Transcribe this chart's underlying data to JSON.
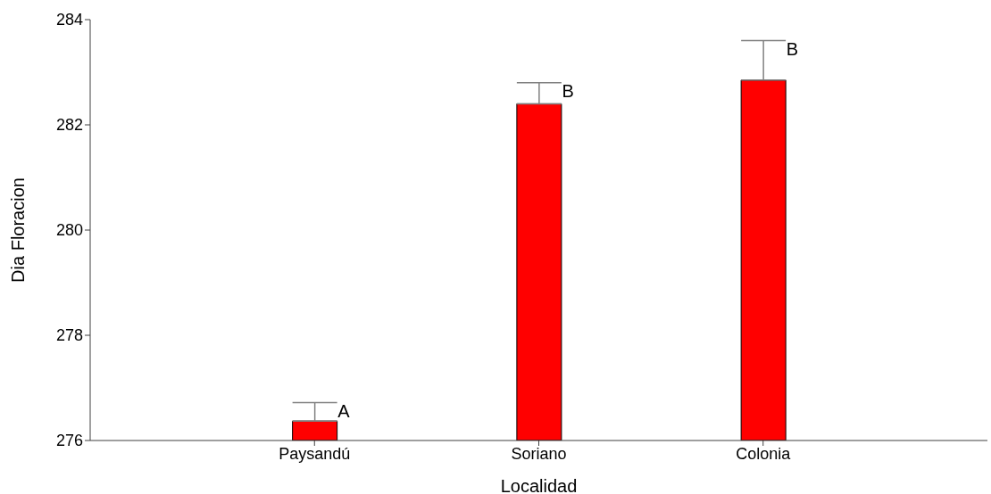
{
  "chart_data": {
    "type": "bar",
    "xlabel": "Localidad",
    "ylabel": "Dia Floracion",
    "categories": [
      "Paysandú",
      "Soriano",
      "Colonia"
    ],
    "values": [
      276.37,
      282.4,
      282.85
    ],
    "color": "#ff0000",
    "errors": [
      [
        276.37,
        276.72
      ],
      [
        282.4,
        282.8
      ],
      [
        282.85,
        283.6
      ]
    ],
    "ylim": [
      276,
      284
    ],
    "yticks": [
      276,
      278,
      280,
      282,
      284
    ],
    "grid": false,
    "legend": false,
    "annotations": [
      {
        "text": "A",
        "x": "Paysandú",
        "y": 276.72
      },
      {
        "text": "B",
        "x": "Soriano",
        "y": 282.8
      },
      {
        "text": "B",
        "x": "Colonia",
        "y": 283.6
      }
    ]
  }
}
